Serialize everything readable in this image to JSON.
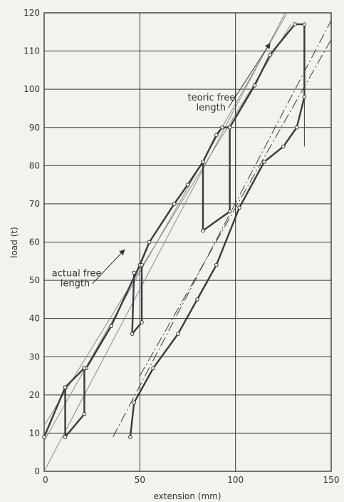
{
  "chart_data": {
    "type": "line",
    "xlabel": "extension (mm)",
    "ylabel": "load (t)",
    "xlim": [
      0,
      150
    ],
    "ylim": [
      0,
      120
    ],
    "x_ticks": [
      0,
      50,
      100,
      150
    ],
    "y_ticks": [
      0,
      10,
      20,
      30,
      40,
      50,
      60,
      70,
      80,
      90,
      100,
      110,
      120
    ],
    "grid": true,
    "colors": {
      "ink": "#3a3a3a",
      "thin": "#8a8a8a",
      "background": "#f4f2ee"
    },
    "series": [
      {
        "line_style": "thick",
        "points": [
          [
            0,
            9
          ],
          [
            11,
            22
          ],
          [
            21,
            27
          ],
          [
            22,
            27
          ],
          [
            35,
            38
          ],
          [
            50,
            54
          ],
          [
            55,
            60
          ],
          [
            68,
            70
          ],
          [
            75,
            75
          ],
          [
            83,
            81
          ],
          [
            90,
            88
          ],
          [
            93,
            90
          ],
          [
            97,
            90
          ],
          [
            110,
            101
          ],
          [
            118,
            109
          ],
          [
            131,
            117
          ],
          [
            136,
            117
          ],
          [
            136,
            98
          ],
          [
            132,
            90
          ],
          [
            125,
            85
          ],
          [
            115,
            81
          ],
          [
            102,
            69
          ],
          [
            90,
            54
          ],
          [
            80,
            45
          ],
          [
            70,
            36
          ],
          [
            57,
            27
          ],
          [
            47,
            18
          ],
          [
            45,
            9
          ]
        ]
      },
      {
        "line_style": "thick",
        "points": [
          [
            11,
            22
          ],
          [
            11,
            9
          ],
          [
            21,
            15
          ],
          [
            21,
            27
          ]
        ]
      },
      {
        "line_style": "thick",
        "points": [
          [
            47,
            52
          ],
          [
            46,
            36
          ],
          [
            51,
            39
          ],
          [
            51,
            54
          ]
        ]
      },
      {
        "line_style": "thick",
        "points": [
          [
            83,
            81
          ],
          [
            83,
            63
          ],
          [
            97,
            68
          ],
          [
            97,
            90
          ]
        ]
      }
    ],
    "reference_lines": [
      {
        "style": "thin",
        "points": [
          [
            0,
            8
          ],
          [
            127,
            120
          ]
        ]
      },
      {
        "style": "thin",
        "points": [
          [
            0,
            0
          ],
          [
            126,
            120
          ]
        ]
      },
      {
        "style": "thin",
        "points": [
          [
            0,
            12
          ],
          [
            129,
            117
          ]
        ]
      },
      {
        "style": "dash-dot",
        "points": [
          [
            36,
            9
          ],
          [
            150,
            118
          ]
        ]
      },
      {
        "style": "dash-dot",
        "points": [
          [
            50,
            25
          ],
          [
            150,
            113
          ]
        ]
      }
    ],
    "vertical_markers": [
      {
        "x": 100,
        "y_from": 65,
        "y_to": 109
      },
      {
        "x": 136,
        "y_from": 85,
        "y_to": 117
      }
    ],
    "annotations": [
      {
        "lines": [
          "teoric free",
          "length"
        ],
        "at": [
          75,
          97
        ],
        "arrow_to": [
          118,
          112
        ]
      },
      {
        "lines": [
          "actual free",
          "length"
        ],
        "at": [
          4,
          51
        ],
        "arrow_to": [
          42,
          58
        ]
      }
    ]
  }
}
